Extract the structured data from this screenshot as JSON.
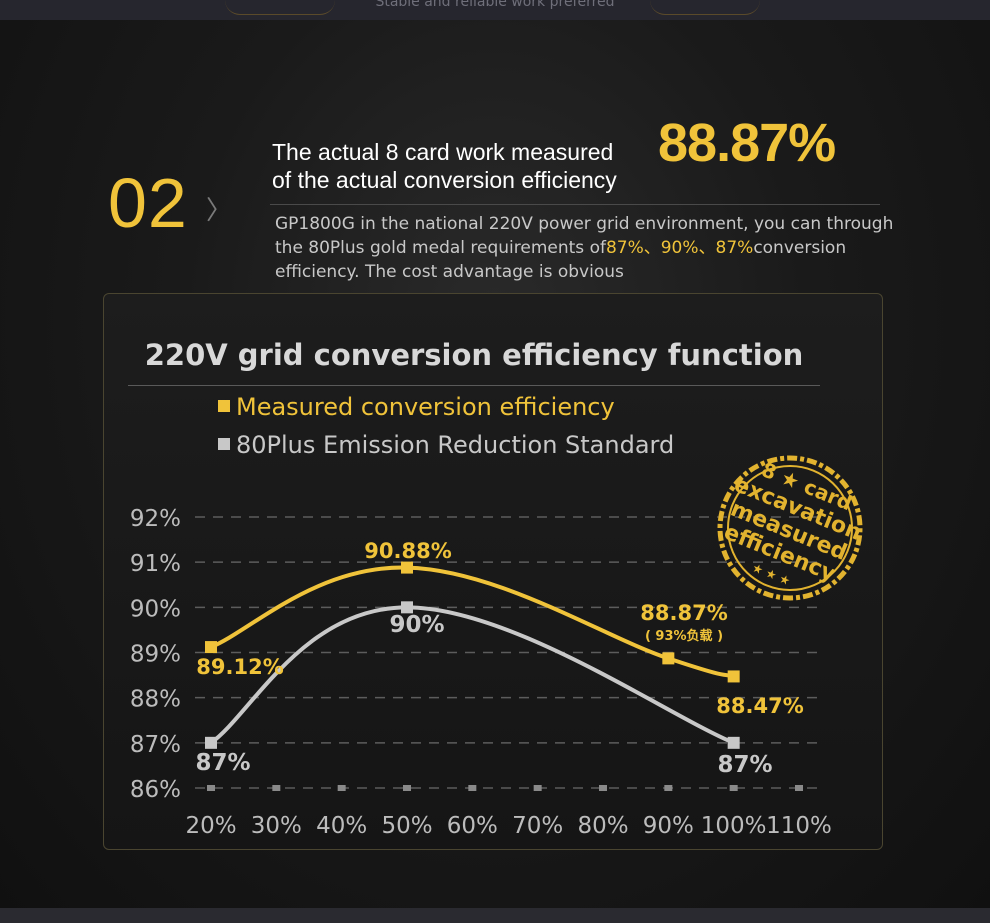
{
  "header": {
    "tagline": "Stable and reliable work preferred"
  },
  "section": {
    "number": "02",
    "chevron": "〉",
    "headline_line1": "The actual 8 card work measured",
    "headline_value": "88.87%",
    "headline_line2": "of the actual conversion efficiency",
    "description_part1": "GP1800G in the national 220V power grid environment, you can through the 80Plus gold medal requirements of",
    "description_values": "87%、90%、87%",
    "description_part2": "conversion efficiency. The cost advantage is obvious"
  },
  "stamp": {
    "text": "8 card excavation measured efficiency"
  },
  "colors": {
    "accent": "#f0c33a",
    "standard": "#c8c8c8",
    "grid": "#666666"
  },
  "chart_data": {
    "type": "line",
    "title": "220V grid conversion efficiency function",
    "xlabel": "",
    "ylabel": "",
    "x_ticks": [
      "20%",
      "30%",
      "40%",
      "50%",
      "60%",
      "70%",
      "80%",
      "90%",
      "100%",
      "110%"
    ],
    "y_ticks": [
      "92%",
      "91%",
      "90%",
      "89%",
      "88%",
      "87%",
      "86%"
    ],
    "xlim": [
      20,
      110
    ],
    "ylim": [
      86,
      92
    ],
    "grid": true,
    "legend": "top-left",
    "series": [
      {
        "name": "Measured conversion efficiency",
        "color": "#f0c33a",
        "x": [
          20,
          50,
          90,
          100
        ],
        "y": [
          89.12,
          90.88,
          88.87,
          88.47
        ],
        "labels": [
          "89.12%",
          "90.88%",
          "88.87%",
          "88.47%"
        ],
        "label_notes": [
          "",
          "",
          "( 93%负载 )",
          ""
        ]
      },
      {
        "name": "80Plus Emission Reduction Standard",
        "color": "#c8c8c8",
        "x": [
          20,
          50,
          100
        ],
        "y": [
          87,
          90,
          87
        ],
        "labels": [
          "87%",
          "90%",
          "87%"
        ]
      }
    ]
  }
}
